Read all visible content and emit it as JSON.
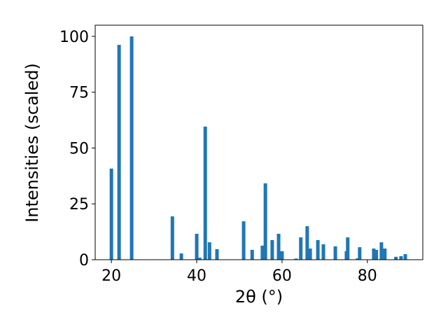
{
  "chart_data": {
    "type": "bar",
    "xlabel": "2θ (°)",
    "ylabel": "Intensities (scaled)",
    "x": [
      20.0,
      21.8,
      24.75,
      34.3,
      36.4,
      40.0,
      40.7,
      42.0,
      43.0,
      44.75,
      51.0,
      53.0,
      55.4,
      56.1,
      57.7,
      59.2,
      60.0,
      63.3,
      64.4,
      65.9,
      66.6,
      68.4,
      69.7,
      72.5,
      75.1,
      75.4,
      77.7,
      78.2,
      81.5,
      82.1,
      83.3,
      84.1,
      86.7,
      87.9,
      88.9
    ],
    "values": [
      40.8,
      96.2,
      100,
      19.4,
      2.8,
      11.6,
      0.9,
      59.6,
      7.8,
      4.7,
      17.2,
      4.4,
      6.3,
      34.2,
      8.8,
      11.6,
      3.8,
      0.5,
      10.0,
      15.0,
      5.0,
      8.8,
      6.9,
      6.0,
      3.8,
      10.0,
      0.6,
      5.6,
      5.0,
      4.4,
      7.8,
      5.0,
      1.3,
      1.6,
      2.5
    ],
    "color": "#1f77b4",
    "xlim": [
      16.2,
      93.0
    ],
    "xticks": [
      20,
      40,
      60,
      80
    ],
    "ylim": [
      0,
      105
    ],
    "yticks": [
      0,
      25,
      50,
      75,
      100
    ]
  }
}
